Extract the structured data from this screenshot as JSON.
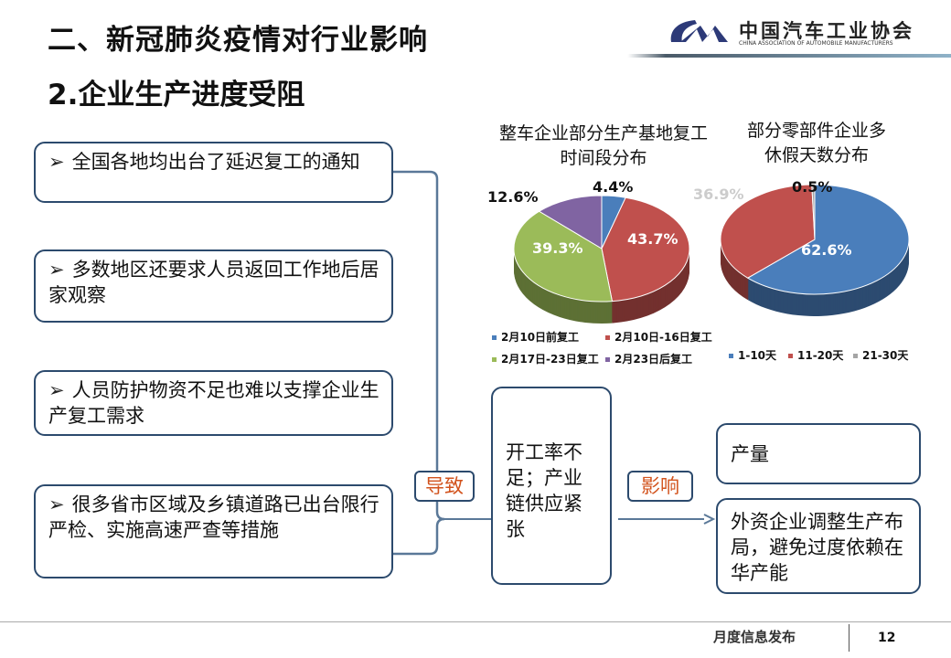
{
  "header": {
    "title": "二、新冠肺炎疫情对行业影响",
    "subtitle": "2.企业生产进度受阻",
    "logo": {
      "cn": "中国汽车工业协会",
      "en": "CHINA ASSOCIATION OF AUTOMOBILE MANUFACTURERS"
    }
  },
  "causes": [
    {
      "marker": "➢",
      "text": "全国各地均出台了延迟复工的通知"
    },
    {
      "marker": "➢",
      "text": "多数地区还要求人员返回工作地后居家观察"
    },
    {
      "marker": "➢",
      "text": "人员防护物资不足也难以支撑企业生产复工需求"
    },
    {
      "marker": "➢",
      "text": "很多省市区域及乡镇道路已出台限行严检、实施高速严查等措施"
    }
  ],
  "lead_to": "导致",
  "result": "开工率不足；产业链供应紧张",
  "impact": "影响",
  "effects": [
    "产量",
    "外资企业调整生产布局，避免过度依赖在华产能"
  ],
  "footer": {
    "text": "月度信息发布",
    "page": "12"
  },
  "chart_data": [
    {
      "type": "pie",
      "title": "整车企业部分生产基地复工时间段分布",
      "categories": [
        "2月10日前复工",
        "2月10日-16日复工",
        "2月17日-23日复工",
        "2月23日后复工"
      ],
      "values": [
        4.4,
        43.7,
        39.3,
        12.6
      ],
      "labels": [
        "4.4%",
        "43.7%",
        "39.3%",
        "12.6%"
      ],
      "colors": [
        "#4a7ebb",
        "#c0504d",
        "#9bbb59",
        "#8064a2"
      ],
      "legend": "bottom"
    },
    {
      "type": "pie",
      "title": "部分零部件企业多休假天数分布",
      "categories": [
        "1-10天",
        "11-20天",
        "21-30天"
      ],
      "values": [
        62.6,
        36.9,
        0.5
      ],
      "labels": [
        "62.6%",
        "36.9%",
        "0.5%"
      ],
      "colors": [
        "#4a7ebb",
        "#c0504d",
        "#a5a5a5"
      ],
      "legend": "bottom"
    }
  ]
}
